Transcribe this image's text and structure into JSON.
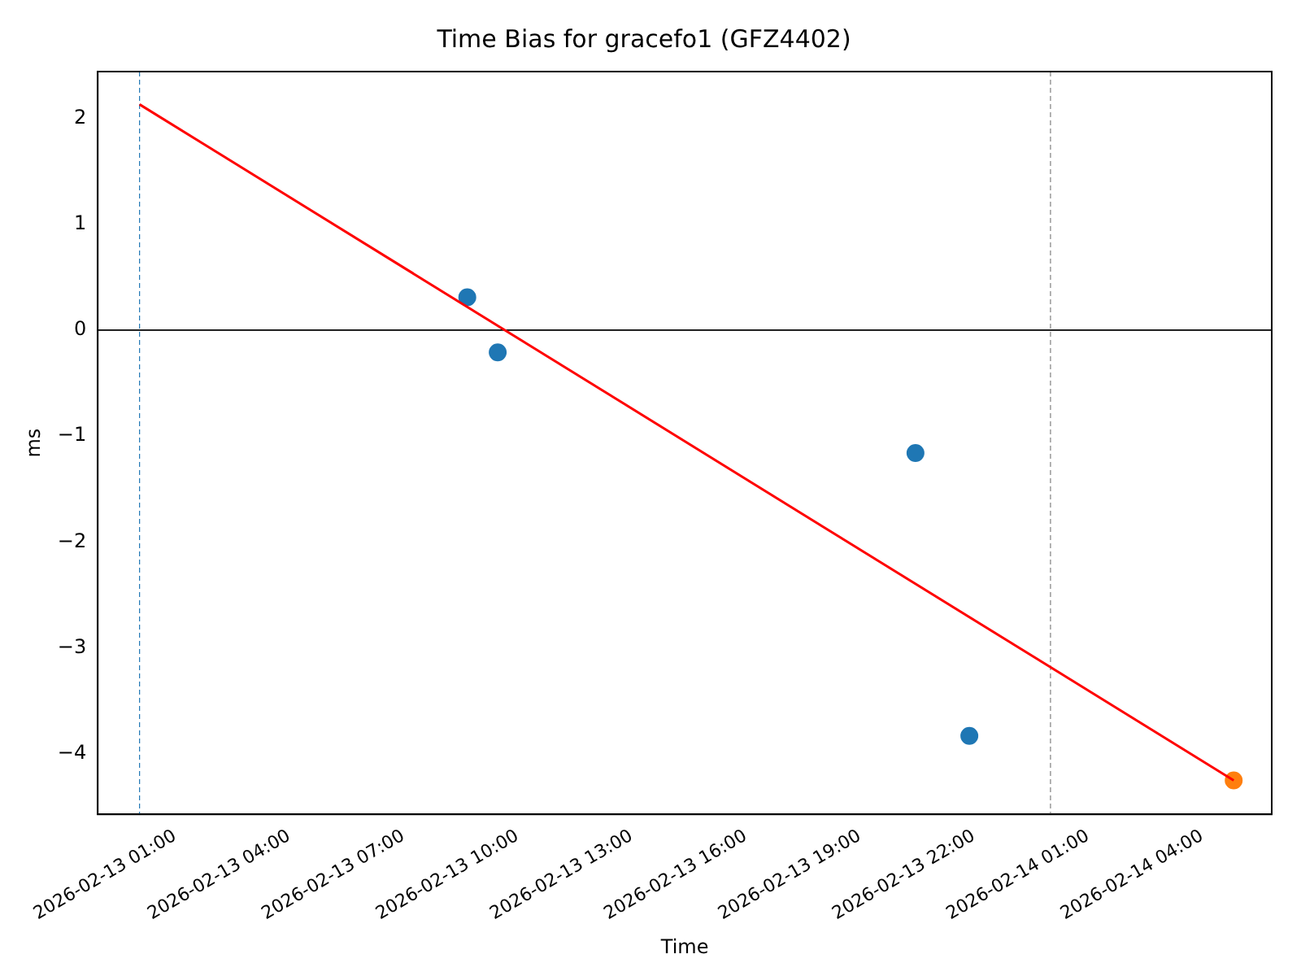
{
  "chart_data": {
    "type": "scatter",
    "title": "Time Bias for gracefo1 (GFZ4402)",
    "xlabel": "Time",
    "ylabel": "ms",
    "xlim": [
      "2026-02-12T22:58",
      "2026-02-14T05:50"
    ],
    "xticks": [
      {
        "value": "2026-02-13T01:00",
        "label": "2026-02-13 01:00"
      },
      {
        "value": "2026-02-13T04:00",
        "label": "2026-02-13 04:00"
      },
      {
        "value": "2026-02-13T07:00",
        "label": "2026-02-13 07:00"
      },
      {
        "value": "2026-02-13T10:00",
        "label": "2026-02-13 10:00"
      },
      {
        "value": "2026-02-13T13:00",
        "label": "2026-02-13 13:00"
      },
      {
        "value": "2026-02-13T16:00",
        "label": "2026-02-13 16:00"
      },
      {
        "value": "2026-02-13T19:00",
        "label": "2026-02-13 19:00"
      },
      {
        "value": "2026-02-13T22:00",
        "label": "2026-02-13 22:00"
      },
      {
        "value": "2026-02-14T01:00",
        "label": "2026-02-14 01:00"
      },
      {
        "value": "2026-02-14T04:00",
        "label": "2026-02-14 04:00"
      }
    ],
    "ylim": [
      -4.57,
      2.44
    ],
    "yticks": [
      -4,
      -3,
      -2,
      -1,
      0,
      1,
      2
    ],
    "series": [
      {
        "type": "line",
        "marker": "none",
        "color": "#ff0000",
        "x": [
          "2026-02-13T00:04",
          "2026-02-14T04:50"
        ],
        "values": [
          2.13,
          -4.25
        ]
      },
      {
        "marker": "circle",
        "color": "#1f77b4",
        "x": [
          "2026-02-13T08:41",
          "2026-02-13T09:29",
          "2026-02-13T20:28",
          "2026-02-13T21:53"
        ],
        "values": [
          0.31,
          -0.21,
          -1.16,
          -3.83
        ]
      },
      {
        "marker": "circle",
        "color": "#ff7f0e",
        "x": [
          "2026-02-14T04:50"
        ],
        "values": [
          -4.25
        ]
      }
    ],
    "ref_lines": [
      {
        "axis": "y",
        "value": 0,
        "color": "#000000",
        "line_style": "solid"
      },
      {
        "axis": "x",
        "value": "2026-02-13T00:04",
        "color": "#1f77b4",
        "line_style": "dashed"
      },
      {
        "axis": "x",
        "value": "2026-02-14T00:01",
        "color": "#808080",
        "line_style": "dashed"
      }
    ]
  }
}
